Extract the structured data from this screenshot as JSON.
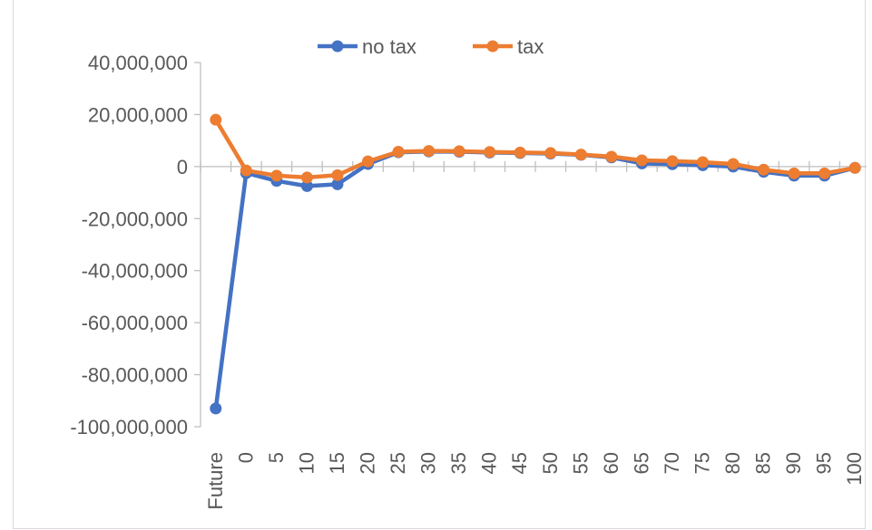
{
  "chart_data": {
    "type": "line",
    "title": "",
    "xlabel": "",
    "ylabel": "",
    "categories": [
      "Future",
      "0",
      "5",
      "10",
      "15",
      "20",
      "25",
      "30",
      "35",
      "40",
      "45",
      "50",
      "55",
      "60",
      "65",
      "70",
      "75",
      "80",
      "85",
      "90",
      "95",
      "100"
    ],
    "ylim": [
      -100000000,
      40000000
    ],
    "yticks": [
      40000000,
      20000000,
      0,
      -20000000,
      -40000000,
      -60000000,
      -80000000,
      -100000000
    ],
    "ytick_labels": [
      "40,000,000",
      "20,000,000",
      "0",
      "-20,000,000",
      "-40,000,000",
      "-60,000,000",
      "-80,000,000",
      "-100,000,000"
    ],
    "grid": false,
    "legend_position": "top",
    "series": [
      {
        "name": "no tax",
        "color": "#4472C4",
        "values": [
          -93000000,
          -2500000,
          -5500000,
          -7500000,
          -6800000,
          1000000,
          5500000,
          5800000,
          5700000,
          5400000,
          5200000,
          5000000,
          4500000,
          3500000,
          1200000,
          900000,
          500000,
          0,
          -2000000,
          -3500000,
          -3500000,
          -500000
        ]
      },
      {
        "name": "tax",
        "color": "#ED7D31",
        "values": [
          18000000,
          -1500000,
          -3500000,
          -4200000,
          -3300000,
          2000000,
          5700000,
          6000000,
          5900000,
          5600000,
          5400000,
          5200000,
          4600000,
          3800000,
          2400000,
          2100000,
          1700000,
          1000000,
          -1200000,
          -2600000,
          -2600000,
          -500000
        ]
      }
    ]
  }
}
